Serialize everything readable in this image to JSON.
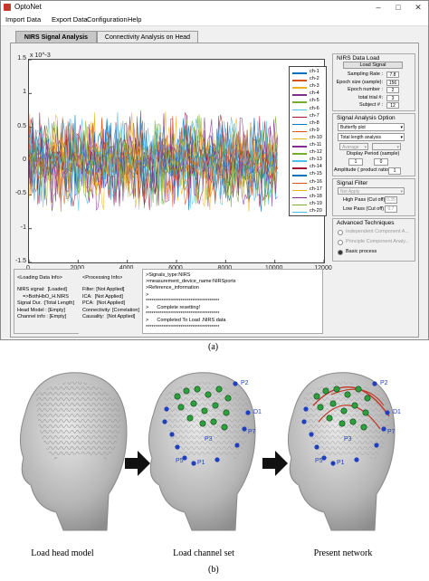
{
  "window": {
    "title": "OptoNet"
  },
  "menu": [
    "Import Data",
    "Export Data",
    "Configuration",
    "Help"
  ],
  "tabs": [
    {
      "label": "NIRS Signal Analysis",
      "active": true
    },
    {
      "label": "Connectivity Analysis on Head Model",
      "active": false
    }
  ],
  "chart_data": {
    "type": "line",
    "title": "",
    "xlabel": "",
    "ylabel": "",
    "y_exponent_label": "x 10^-3",
    "xlim": [
      0,
      12000
    ],
    "ylim": [
      -1.5,
      1.5
    ],
    "x_ticks": [
      "0",
      "2000",
      "4000",
      "6000",
      "8000",
      "10000",
      "12000"
    ],
    "y_ticks": [
      "1.5",
      "1",
      "0.5",
      "0",
      "-0.5",
      "-1",
      "-1.5"
    ],
    "data_extent_x": [
      0,
      10100
    ],
    "series": [
      {
        "name": "ch-1",
        "color": "#0072bd"
      },
      {
        "name": "ch-2",
        "color": "#d95319"
      },
      {
        "name": "ch-3",
        "color": "#edb120"
      },
      {
        "name": "ch-4",
        "color": "#7e2f8e"
      },
      {
        "name": "ch-5",
        "color": "#77ac30"
      },
      {
        "name": "ch-6",
        "color": "#4dbeee"
      },
      {
        "name": "ch-7",
        "color": "#a2142f"
      },
      {
        "name": "ch-8",
        "color": "#0072bd"
      },
      {
        "name": "ch-9",
        "color": "#d95319"
      },
      {
        "name": "ch-10",
        "color": "#edb120"
      },
      {
        "name": "ch-11",
        "color": "#7e2f8e"
      },
      {
        "name": "ch-12",
        "color": "#77ac30"
      },
      {
        "name": "ch-13",
        "color": "#4dbeee"
      },
      {
        "name": "ch-14",
        "color": "#a2142f"
      },
      {
        "name": "ch-15",
        "color": "#0072bd"
      },
      {
        "name": "ch-16",
        "color": "#d95319"
      },
      {
        "name": "ch-17",
        "color": "#edb120"
      },
      {
        "name": "ch-18",
        "color": "#7e2f8e"
      },
      {
        "name": "ch-19",
        "color": "#77ac30"
      },
      {
        "name": "ch-20",
        "color": "#4dbeee"
      }
    ]
  },
  "data_load": {
    "header": "NIRS Data Load",
    "button": "Load Signal",
    "fields": [
      {
        "label": "Sampling Rate :",
        "value": "7.8"
      },
      {
        "label": "Epoch size (sample):",
        "value": "156"
      },
      {
        "label": "Epoch number :",
        "value": "2"
      },
      {
        "label": "total trial #:",
        "value": "3"
      },
      {
        "label": "Subject # :",
        "value": "12"
      }
    ]
  },
  "signal_option": {
    "header": "Signal Analysis Option",
    "plot_type": "Butterfly plot",
    "length": "Total length analysis",
    "average": "Average",
    "display_period_label": "Display Period (sample)",
    "period_from": "1",
    "period_to": "0",
    "amplitude_label": "Amplitude ( product ratio) :",
    "amplitude_value": "1"
  },
  "signal_filter": {
    "header": "Signal Filter",
    "filter": "Not Apply",
    "high_pass_label": "High Pass (Cut off)",
    "high_pass_value": "0.35",
    "low_pass_label": "Low Pass (Cut off)",
    "low_pass_value": "0.7"
  },
  "advanced": {
    "header": "Advanced Techniques",
    "options": [
      "Independent Component A...",
      "Principle Component Analy...",
      "Basic process"
    ]
  },
  "loading_info": {
    "title": "<Loading Data Info>",
    "lines": [
      "NIRS signal:  [Loaded]",
      "    =>BothHbO_H.NIRS",
      "Signal Dur. :[Total Length]",
      "Head Model : [Empty]",
      "Channel info : [Empty]"
    ]
  },
  "processing_info": {
    "title": "<Processing Info>",
    "lines": [
      "Filter: [Not Applied]",
      "ICA:  [Not Applied]",
      "PCA:  [Not Applied]",
      "Connectivity: [Correlation]",
      "Causality:  [Not Applied]"
    ]
  },
  "log": {
    "lines": [
      ">Signals_type:NIRS",
      ">measurement_device_name:NIRSports",
      ">Reference_information",
      ">",
      "**************************************",
      ">      Complete resetting!",
      "**************************************",
      ">      Completed To Load .NIRS data",
      "**************************************"
    ]
  },
  "caption_a": "(a)",
  "caption_b": "(b)",
  "panel_captions": [
    "Load head model",
    "Load channel set",
    "Present network"
  ],
  "channel_labels": [
    "P2",
    "D1",
    "P7",
    "P1",
    "P3",
    "P5"
  ]
}
